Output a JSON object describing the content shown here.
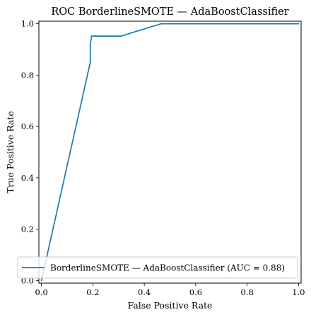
{
  "chart_data": {
    "type": "line",
    "title": "ROC BorderlineSMOTE — AdaBoostClassifier",
    "xlabel": "False Positive Rate",
    "ylabel": "True Positive Rate",
    "xlim": [
      -0.01,
      1.01
    ],
    "ylim": [
      -0.01,
      1.01
    ],
    "xticks": [
      "0.0",
      "0.2",
      "0.4",
      "0.6",
      "0.8",
      "1.0"
    ],
    "yticks": [
      "0.0",
      "0.2",
      "0.4",
      "0.6",
      "0.8",
      "1.0"
    ],
    "grid": false,
    "legend_position": "lower-right",
    "series": [
      {
        "name": "BorderlineSMOTE — AdaBoostClassifier (AUC = 0.88)",
        "color": "#1f77b4",
        "x": [
          0.0,
          0.0,
          0.19,
          0.19,
          0.19,
          0.195,
          0.31,
          0.465,
          1.0
        ],
        "y": [
          0.0,
          0.0,
          0.85,
          0.86,
          0.92,
          0.952,
          0.952,
          1.0,
          1.0
        ]
      }
    ]
  }
}
